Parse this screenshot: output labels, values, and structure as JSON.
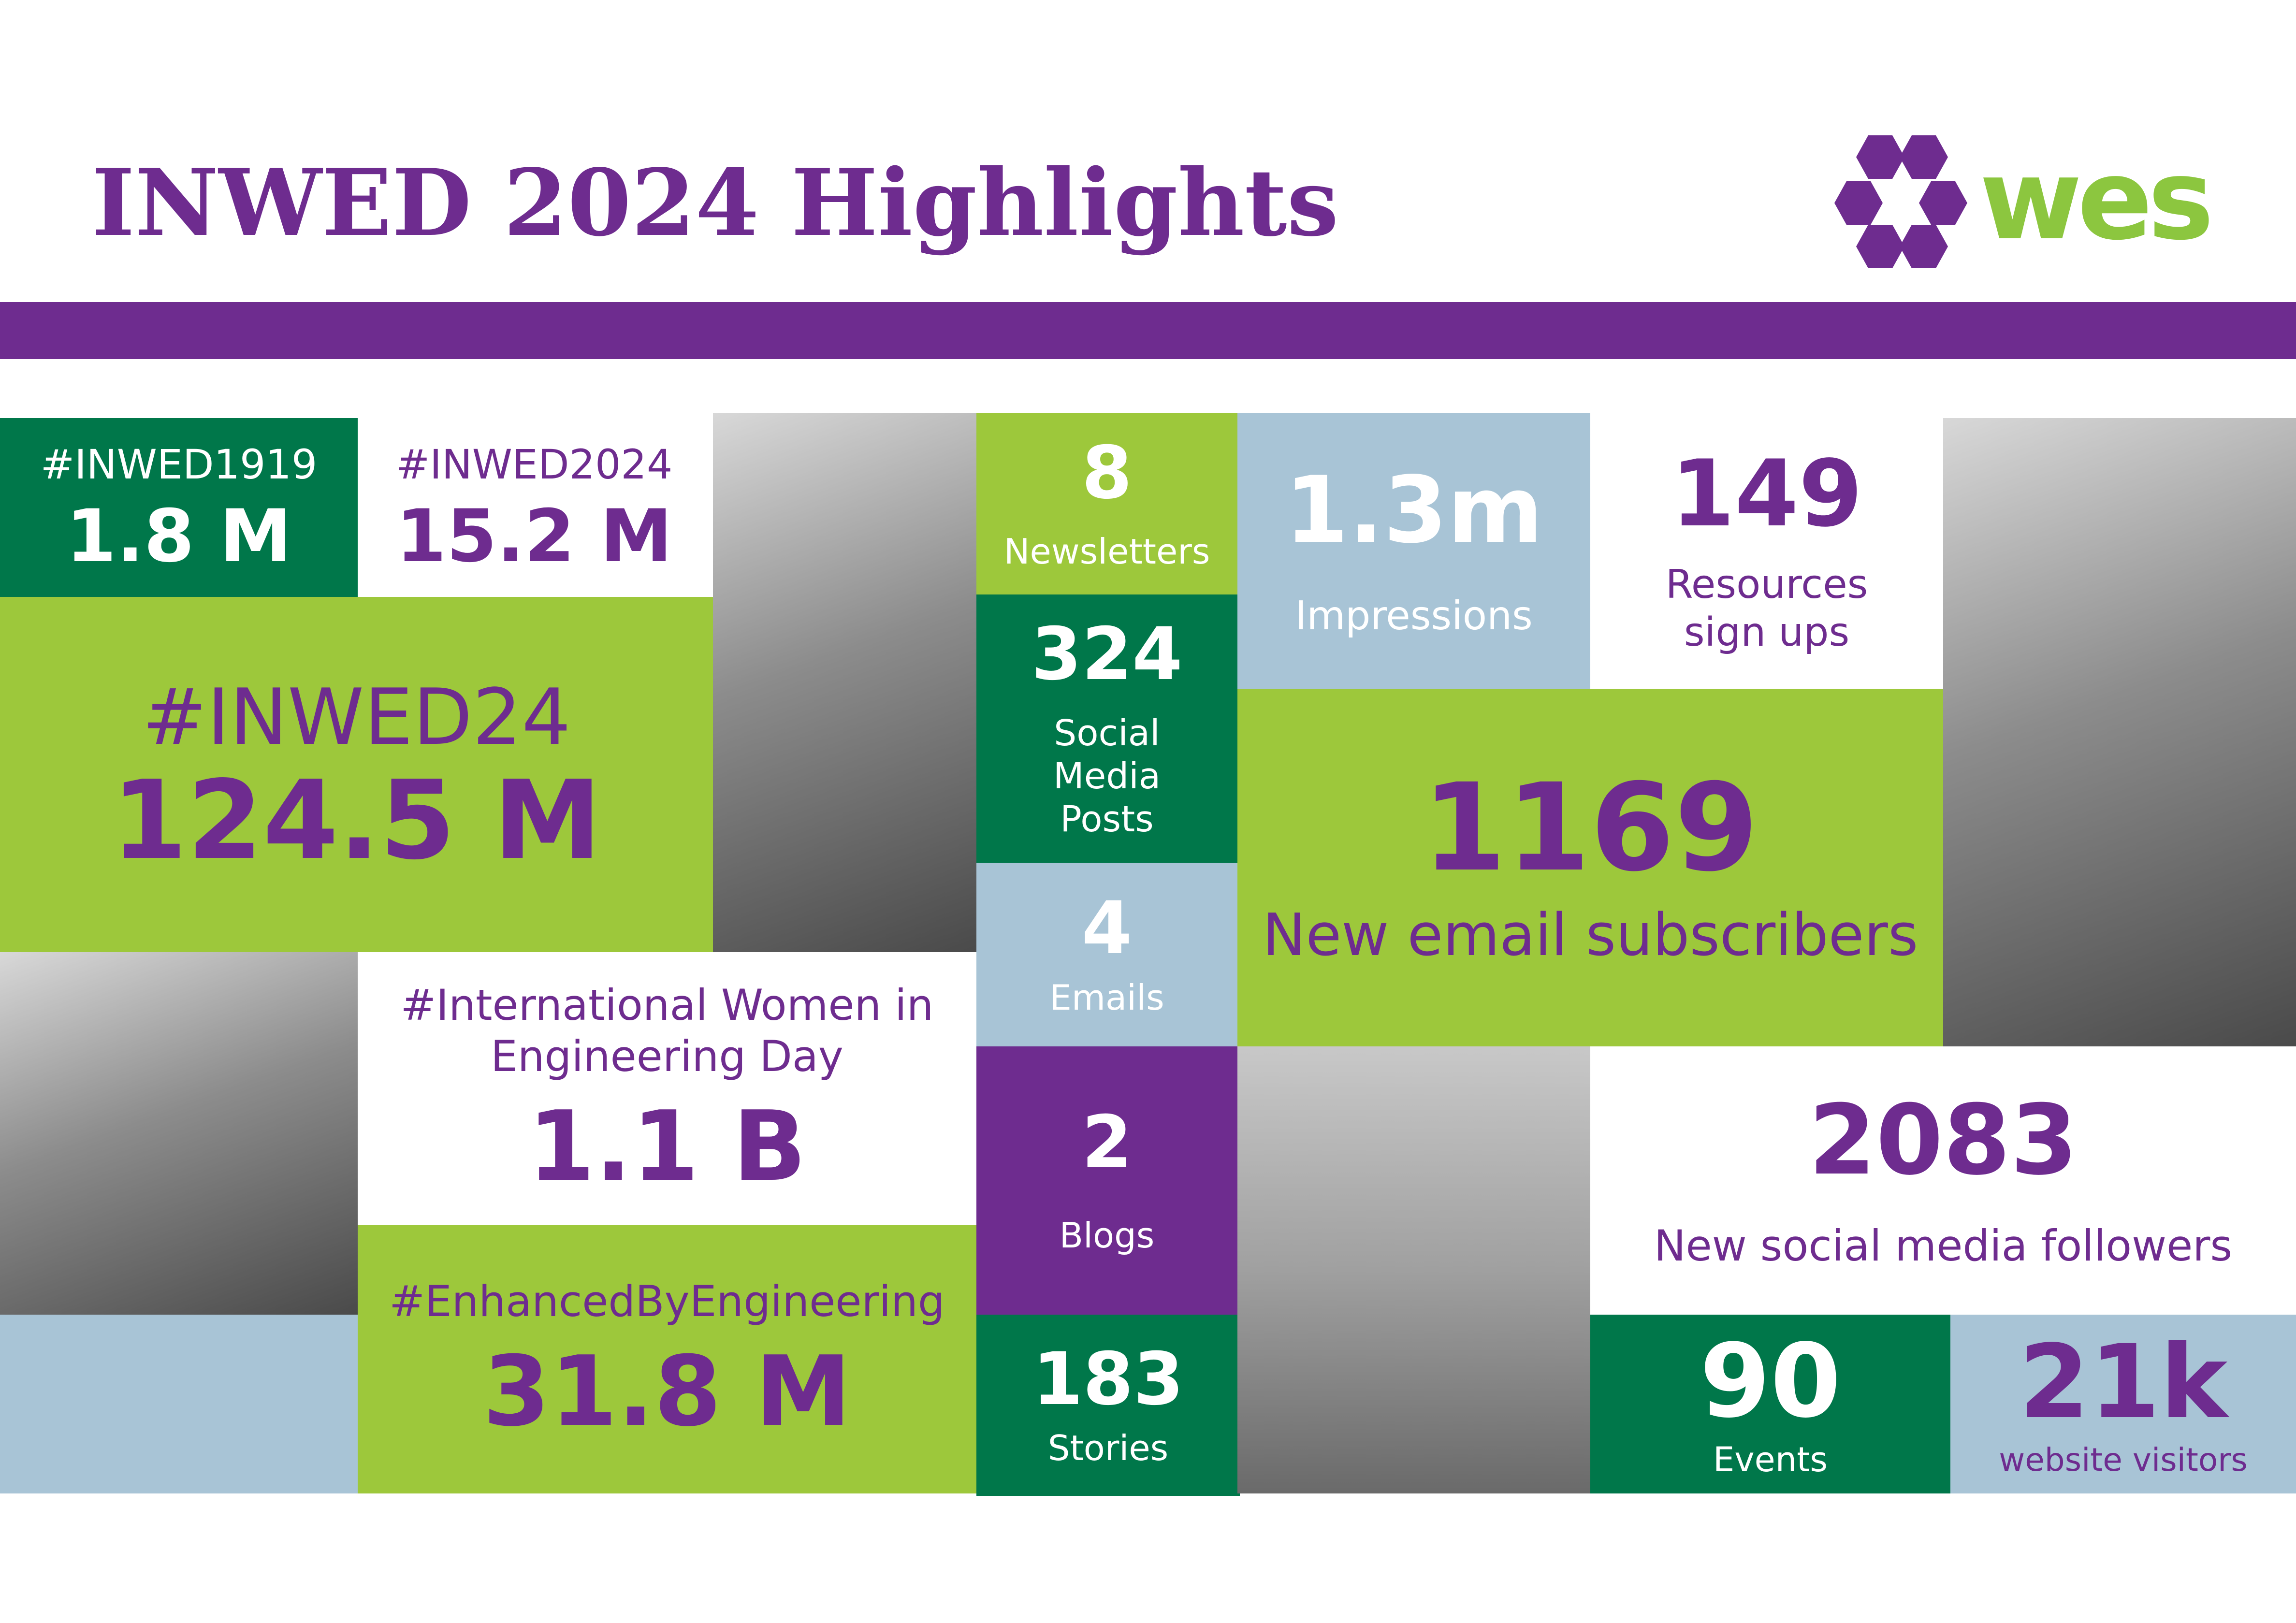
{
  "header": {
    "title": "INWED 2024 Highlights",
    "logo_text": "wes"
  },
  "colors": {
    "purple": "#6e2c8f",
    "dark_green": "#00774a",
    "light_green": "#9dc83b",
    "light_blue": "#a8c4d6",
    "logo_green": "#8cc63f"
  },
  "stats": {
    "inwed1919": {
      "tag": "#INWED1919",
      "value": "1.8 M"
    },
    "inwed2024": {
      "tag": "#INWED2024",
      "value": "15.2 M"
    },
    "inwed24": {
      "tag": "#INWED24",
      "value": "124.5 M"
    },
    "intl_women": {
      "tag": "#International Women in Engineering Day",
      "value": "1.1 B"
    },
    "enhanced": {
      "tag": "#EnhancedByEngineering",
      "value": "31.8 M"
    },
    "newsletters": {
      "value": "8",
      "label": "Newsletters"
    },
    "social_posts": {
      "value": "324",
      "label": "Social Media Posts"
    },
    "emails": {
      "value": "4",
      "label": "Emails"
    },
    "blogs": {
      "value": "2",
      "label": "Blogs"
    },
    "stories": {
      "value": "183",
      "label": "Stories"
    },
    "impressions": {
      "value": "1.3m",
      "label": "Impressions"
    },
    "resources": {
      "value": "149",
      "label": "Resources sign ups"
    },
    "email_subs": {
      "value": "1169",
      "label": "New email subscribers"
    },
    "followers": {
      "value": "2083",
      "label": "New social media followers"
    },
    "events": {
      "value": "90",
      "label": "Events"
    },
    "visitors": {
      "value": "21k",
      "label": "website visitors"
    }
  }
}
